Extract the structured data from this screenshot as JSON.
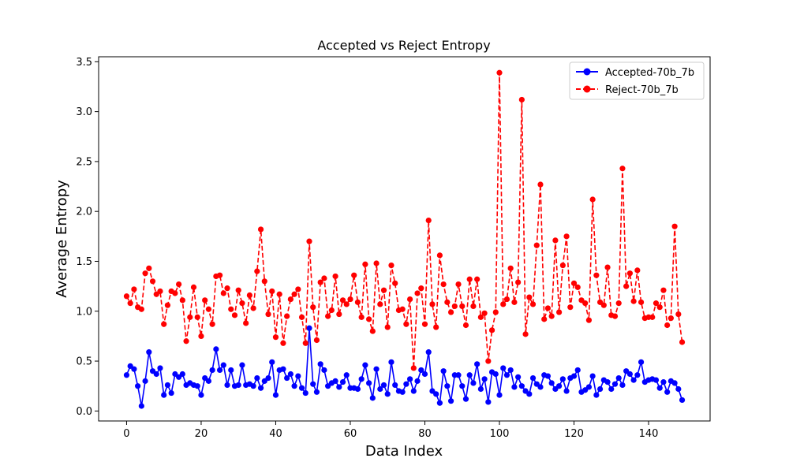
{
  "chart_data": {
    "type": "line",
    "title": "Accepted vs Reject Entropy",
    "xlabel": "Data Index",
    "ylabel": "Average Entropy",
    "xlim": [
      -7.5,
      156.5
    ],
    "ylim": [
      -0.1,
      3.55
    ],
    "xticks": [
      0,
      20,
      40,
      60,
      80,
      100,
      120,
      140
    ],
    "yticks": [
      0.0,
      0.5,
      1.0,
      1.5,
      2.0,
      2.5,
      3.0,
      3.5
    ],
    "xtick_labels": [
      "0",
      "20",
      "40",
      "60",
      "80",
      "100",
      "120",
      "140"
    ],
    "ytick_labels": [
      "0.0",
      "0.5",
      "1.0",
      "1.5",
      "2.0",
      "2.5",
      "3.0",
      "3.5"
    ],
    "grid": false,
    "legend_position": "top-right",
    "series": [
      {
        "name": "Accepted-70b_7b",
        "color": "#0000ff",
        "line_style": "solid",
        "marker": "circle",
        "values": [
          0.36,
          0.45,
          0.42,
          0.25,
          0.05,
          0.3,
          0.59,
          0.4,
          0.37,
          0.43,
          0.16,
          0.26,
          0.18,
          0.37,
          0.34,
          0.37,
          0.26,
          0.28,
          0.26,
          0.25,
          0.16,
          0.33,
          0.3,
          0.41,
          0.62,
          0.41,
          0.46,
          0.26,
          0.41,
          0.25,
          0.26,
          0.46,
          0.26,
          0.27,
          0.25,
          0.33,
          0.23,
          0.3,
          0.33,
          0.49,
          0.16,
          0.41,
          0.42,
          0.33,
          0.37,
          0.25,
          0.35,
          0.23,
          0.18,
          0.83,
          0.27,
          0.19,
          0.47,
          0.41,
          0.25,
          0.28,
          0.3,
          0.24,
          0.29,
          0.36,
          0.23,
          0.23,
          0.22,
          0.32,
          0.46,
          0.28,
          0.13,
          0.42,
          0.22,
          0.26,
          0.17,
          0.49,
          0.26,
          0.2,
          0.19,
          0.27,
          0.32,
          0.2,
          0.3,
          0.41,
          0.37,
          0.59,
          0.2,
          0.17,
          0.08,
          0.4,
          0.25,
          0.1,
          0.36,
          0.36,
          0.25,
          0.12,
          0.36,
          0.28,
          0.47,
          0.22,
          0.32,
          0.09,
          0.39,
          0.37,
          0.16,
          0.43,
          0.36,
          0.41,
          0.24,
          0.34,
          0.25,
          0.2,
          0.17,
          0.33,
          0.27,
          0.24,
          0.36,
          0.35,
          0.28,
          0.22,
          0.25,
          0.32,
          0.2,
          0.33,
          0.35,
          0.41,
          0.19,
          0.21,
          0.24,
          0.35,
          0.16,
          0.22,
          0.31,
          0.29,
          0.22,
          0.27,
          0.33,
          0.26,
          0.4,
          0.37,
          0.31,
          0.36,
          0.49,
          0.29,
          0.31,
          0.32,
          0.31,
          0.23,
          0.29,
          0.19,
          0.3,
          0.28,
          0.22,
          0.11
        ]
      },
      {
        "name": "Reject-70b_7b",
        "color": "#ff0000",
        "line_style": "dashed",
        "marker": "circle",
        "values": [
          1.15,
          1.08,
          1.22,
          1.04,
          1.02,
          1.38,
          1.43,
          1.3,
          1.17,
          1.2,
          0.87,
          1.06,
          1.2,
          1.18,
          1.27,
          1.11,
          0.7,
          0.94,
          1.24,
          0.94,
          0.75,
          1.11,
          1.02,
          0.87,
          1.35,
          1.36,
          1.18,
          1.23,
          1.02,
          0.96,
          1.21,
          1.08,
          0.88,
          1.16,
          1.03,
          1.4,
          1.82,
          1.3,
          0.97,
          1.2,
          0.74,
          1.17,
          0.68,
          0.95,
          1.12,
          1.17,
          1.22,
          0.94,
          0.68,
          1.7,
          1.04,
          0.71,
          1.29,
          1.33,
          0.95,
          1.01,
          1.35,
          0.97,
          1.11,
          1.07,
          1.12,
          1.36,
          1.09,
          0.94,
          1.47,
          0.92,
          0.8,
          1.48,
          1.07,
          1.21,
          0.84,
          1.46,
          1.28,
          1.01,
          1.02,
          0.87,
          1.12,
          0.43,
          1.18,
          1.23,
          0.87,
          1.91,
          1.07,
          0.84,
          1.56,
          1.27,
          1.09,
          0.99,
          1.05,
          1.27,
          1.05,
          0.86,
          1.32,
          1.05,
          1.32,
          0.94,
          0.98,
          0.5,
          0.81,
          0.99,
          3.39,
          1.07,
          1.12,
          1.43,
          1.09,
          1.29,
          3.12,
          0.77,
          1.14,
          1.07,
          1.66,
          2.27,
          0.92,
          1.03,
          0.95,
          1.71,
          0.99,
          1.46,
          1.75,
          1.04,
          1.28,
          1.24,
          1.11,
          1.08,
          0.91,
          2.12,
          1.36,
          1.09,
          1.06,
          1.44,
          0.96,
          0.95,
          1.08,
          2.43,
          1.25,
          1.38,
          1.1,
          1.41,
          1.09,
          0.93,
          0.94,
          0.94,
          1.08,
          1.04,
          1.21,
          0.86,
          0.93,
          1.85,
          0.97,
          0.69
        ]
      }
    ]
  }
}
